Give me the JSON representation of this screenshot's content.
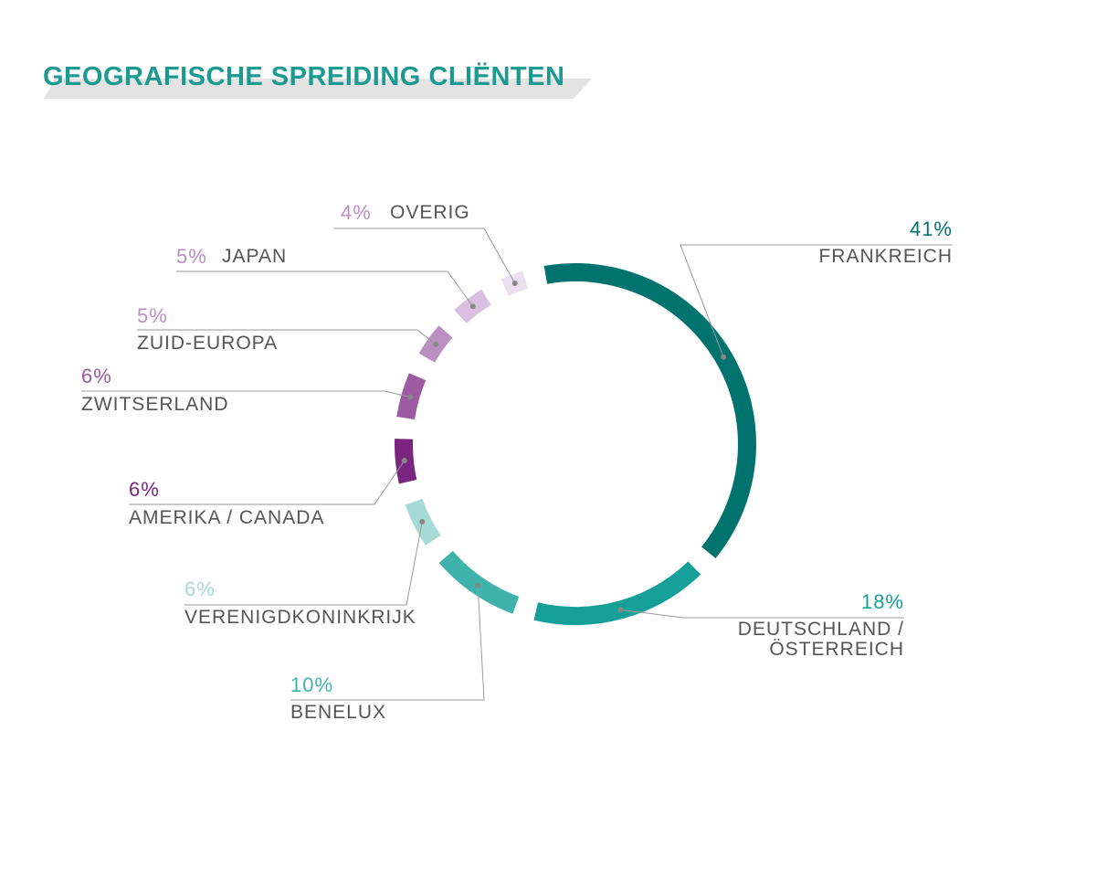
{
  "chart_data": {
    "type": "pie",
    "title": "GEOGRAFISCHE SPREIDING CLIËNTEN",
    "categories": [
      "FRANKREICH",
      "DEUTSCHLAND / ÖSTERREICH",
      "BENELUX",
      "VERENIGDKONINKRIJK",
      "AMERIKA / CANADA",
      "ZWITSERLAND",
      "ZUID-EUROPA",
      "JAPAN",
      "OVERIG"
    ],
    "values": [
      41,
      18,
      10,
      6,
      6,
      6,
      5,
      5,
      4
    ],
    "value_labels": [
      "41%",
      "18%",
      "10%",
      "6%",
      "6%",
      "6%",
      "5%",
      "5%",
      "4%"
    ],
    "colors": [
      "#00736e",
      "#14a098",
      "#3fb3ab",
      "#a7d9d5",
      "#7a2580",
      "#9c5aa0",
      "#bb8fc2",
      "#d9bfe0",
      "#ebdff0"
    ]
  }
}
